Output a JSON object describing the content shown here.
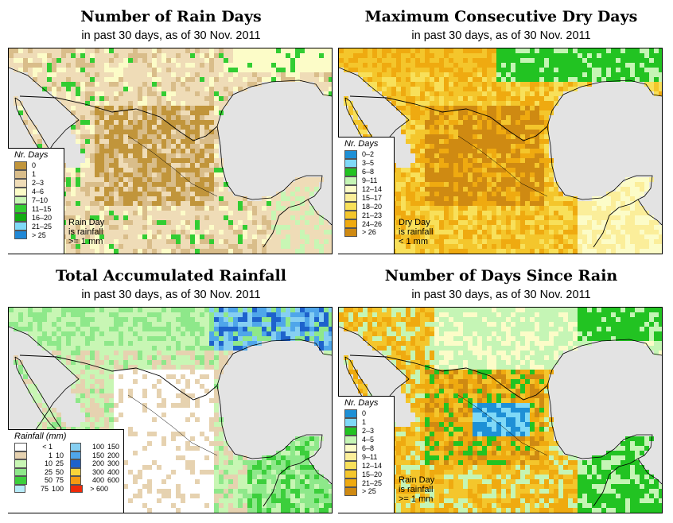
{
  "panels": [
    {
      "title": "Number of Rain Days",
      "subtitle": "in past 30 days, as of  30 Nov. 2011",
      "legend_title": "Nr. Days",
      "legend": [
        {
          "label": "0",
          "color": "#c1953b"
        },
        {
          "label": "1",
          "color": "#d9bd8a"
        },
        {
          "label": "2–3",
          "color": "#efdcb7"
        },
        {
          "label": "4–6",
          "color": "#fcfcc8"
        },
        {
          "label": "7–10",
          "color": "#c8f6b4"
        },
        {
          "label": "11–15",
          "color": "#32cd32"
        },
        {
          "label": "16–20",
          "color": "#11ab11"
        },
        {
          "label": "21–25",
          "color": "#7fd9f7"
        },
        {
          "label": "> 25",
          "color": "#2088d6"
        }
      ],
      "note": [
        "Rain Day",
        "is rainfall",
        ">= 1 mm"
      ]
    },
    {
      "title": "Maximum Consecutive Dry Days",
      "subtitle": "in past 30 days, as of  30 Nov. 2011",
      "legend_title": "Nr. Days",
      "legend": [
        {
          "label": "0–2",
          "color": "#1e90d6"
        },
        {
          "label": "3–5",
          "color": "#7fd9f7"
        },
        {
          "label": "6–8",
          "color": "#22c322"
        },
        {
          "label": "9–11",
          "color": "#c5f5b5"
        },
        {
          "label": "12–14",
          "color": "#fcfcc8"
        },
        {
          "label": "15–17",
          "color": "#fbee9a"
        },
        {
          "label": "18–20",
          "color": "#f8e05a"
        },
        {
          "label": "21–23",
          "color": "#f4c62c"
        },
        {
          "label": "24–26",
          "color": "#efaa10"
        },
        {
          "label": "> 26",
          "color": "#cf8a12"
        }
      ],
      "note": [
        "Dry Day",
        "is rainfall",
        "< 1 mm"
      ]
    },
    {
      "title": "Total Accumulated Rainfall",
      "subtitle": "in past 30 days, as of  30 Nov. 2011",
      "legend_title": "Rainfall (mm)",
      "legend": [
        {
          "low": "< 1",
          "high": "",
          "color": "#ffffff"
        },
        {
          "low": "1",
          "high": "10",
          "color": "#e6d2b0"
        },
        {
          "low": "10",
          "high": "25",
          "color": "#c8f6b4"
        },
        {
          "low": "25",
          "high": "50",
          "color": "#8ee88a"
        },
        {
          "low": "50",
          "high": "75",
          "color": "#3ccf3c"
        },
        {
          "low": "75",
          "high": "100",
          "color": "#b7ecfa"
        },
        {
          "low": "100",
          "high": "150",
          "color": "#86cff2"
        },
        {
          "low": "150",
          "high": "200",
          "color": "#4fa6ea"
        },
        {
          "low": "200",
          "high": "300",
          "color": "#1e62cc"
        },
        {
          "low": "300",
          "high": "400",
          "color": "#f9d43a"
        },
        {
          "low": "400",
          "high": "600",
          "color": "#f59a12"
        },
        {
          "low": "> 600",
          "high": "",
          "color": "#ee2a0a"
        }
      ]
    },
    {
      "title": "Number of Days Since Rain",
      "subtitle": "in past 30 days, as of  30 Nov. 2011",
      "legend_title": "Nr. Days",
      "legend": [
        {
          "label": "0",
          "color": "#1e90d6"
        },
        {
          "label": "1",
          "color": "#7fd9f7"
        },
        {
          "label": "2–3",
          "color": "#22c322"
        },
        {
          "label": "4–5",
          "color": "#c5f5b5"
        },
        {
          "label": "6–8",
          "color": "#fcfcc8"
        },
        {
          "label": "9–11",
          "color": "#fbee9a"
        },
        {
          "label": "12–14",
          "color": "#f8e05a"
        },
        {
          "label": "15–20",
          "color": "#f4c62c"
        },
        {
          "label": "21–25",
          "color": "#efaa10"
        },
        {
          "label": "> 25",
          "color": "#cf8a12"
        }
      ],
      "note": [
        "Rain Day",
        "is rainfall",
        ">= 1 mm"
      ]
    }
  ]
}
